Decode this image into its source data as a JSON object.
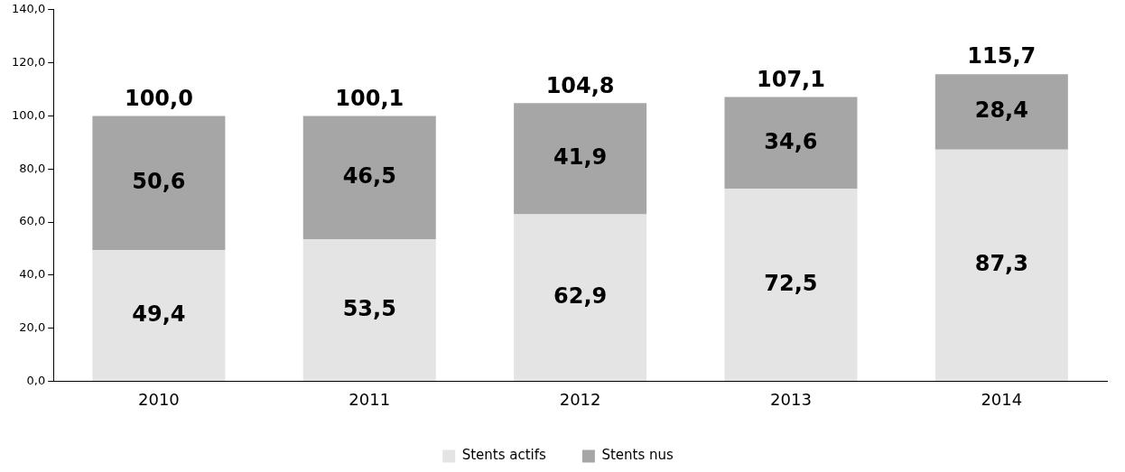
{
  "chart_data": {
    "type": "bar",
    "stacked": true,
    "categories": [
      "2010",
      "2011",
      "2012",
      "2013",
      "2014"
    ],
    "series": [
      {
        "name": "Stents actifs",
        "color": "#e4e4e4",
        "values": [
          49.4,
          53.5,
          62.9,
          72.5,
          87.3
        ],
        "value_labels": [
          "49,4",
          "53,5",
          "62,9",
          "72,5",
          "87,3"
        ]
      },
      {
        "name": "Stents nus",
        "color": "#a6a6a6",
        "values": [
          50.6,
          46.5,
          41.9,
          34.6,
          28.4
        ],
        "value_labels": [
          "50,6",
          "46,5",
          "41,9",
          "34,6",
          "28,4"
        ]
      }
    ],
    "totals": [
      "100,0",
      "100,1",
      "104,8",
      "107,1",
      "115,7"
    ],
    "ylim": [
      0,
      140
    ],
    "yticks": [
      {
        "value": 0,
        "label": "0,0"
      },
      {
        "value": 20,
        "label": "20,0"
      },
      {
        "value": 40,
        "label": "40,0"
      },
      {
        "value": 60,
        "label": "60,0"
      },
      {
        "value": 80,
        "label": "80,0"
      },
      {
        "value": 100,
        "label": "100,0"
      },
      {
        "value": 120,
        "label": "120,0"
      },
      {
        "value": 140,
        "label": "140,0"
      }
    ],
    "grid": false,
    "legend": "bottom"
  }
}
